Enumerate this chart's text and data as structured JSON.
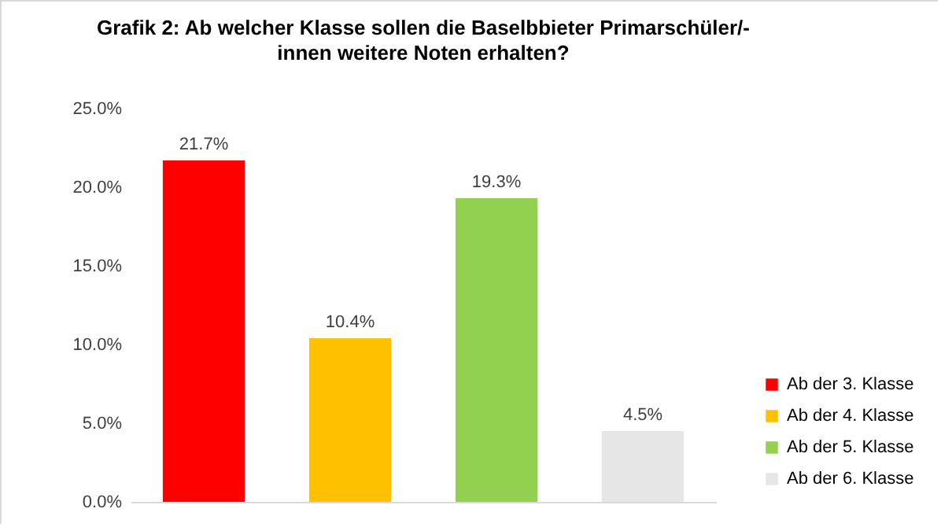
{
  "chart_data": {
    "type": "bar",
    "title": "Grafik 2: Ab welcher Klasse sollen die Baselbbieter Primarschüler/-innen weitere Noten erhalten?",
    "categories": [
      null,
      null,
      null,
      null
    ],
    "series": [
      {
        "name": "Ab der 3. Klasse",
        "color": "#ff0000",
        "values": [
          21.7,
          null,
          null,
          null
        ],
        "value_labels": [
          "21.7%",
          null,
          null,
          null
        ]
      },
      {
        "name": "Ab der 4. Klasse",
        "color": "#ffc000",
        "values": [
          null,
          10.4,
          null,
          null
        ],
        "value_labels": [
          null,
          "10.4%",
          null,
          null
        ]
      },
      {
        "name": "Ab der 5. Klasse",
        "color": "#92d050",
        "values": [
          null,
          null,
          19.3,
          null
        ],
        "value_labels": [
          null,
          null,
          "19.3%",
          null
        ]
      },
      {
        "name": "Ab der 6. Klasse",
        "color": "#e7e6e6",
        "values": [
          null,
          null,
          null,
          4.5
        ],
        "value_labels": [
          null,
          null,
          null,
          "4.5%"
        ]
      }
    ],
    "ylim": [
      0,
      25
    ],
    "yticks": [
      {
        "value": 0,
        "label": "0.0%"
      },
      {
        "value": 5,
        "label": "5.0%"
      },
      {
        "value": 10,
        "label": "10.0%"
      },
      {
        "value": 15,
        "label": "15.0%"
      },
      {
        "value": 20,
        "label": "20.0%"
      },
      {
        "value": 25,
        "label": "25.0%"
      }
    ],
    "tick_labels": "y",
    "grid": false,
    "legend": "bottom right"
  }
}
